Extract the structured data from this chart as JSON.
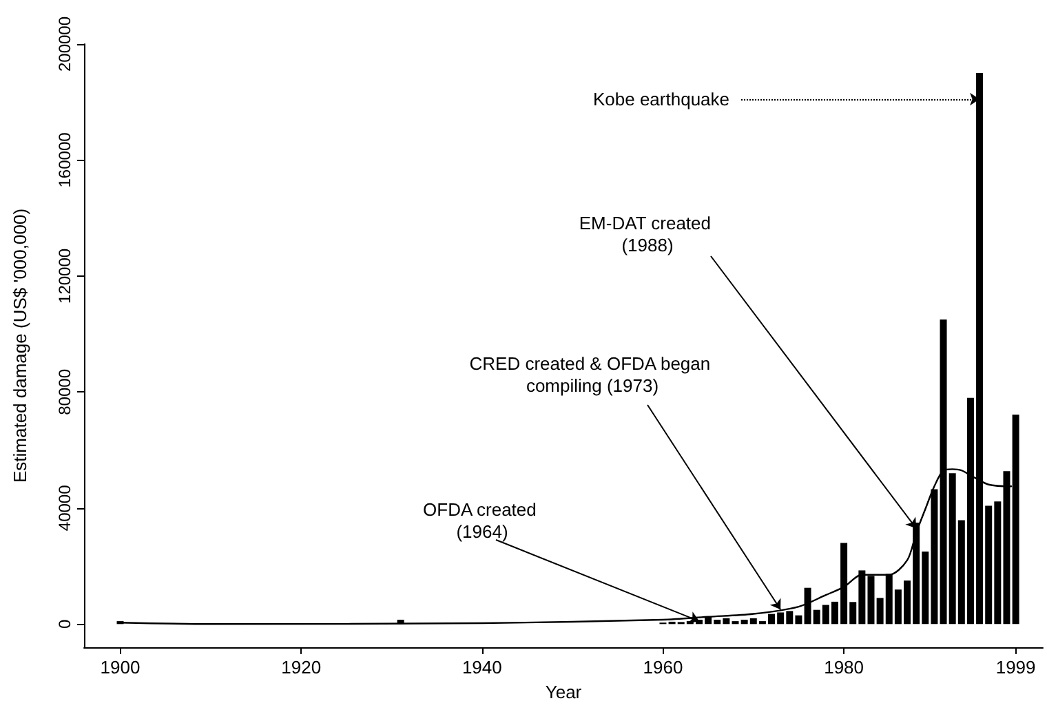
{
  "chart_data": {
    "type": "bar",
    "xlabel": "Year",
    "ylabel": "Estimated damage (US$ '000,000)",
    "xlim": [
      1896,
      2002
    ],
    "xticks": [
      1900,
      1920,
      1940,
      1960,
      1980,
      1999
    ],
    "ylim": [
      -8000,
      200000
    ],
    "yticks": [
      0,
      40000,
      80000,
      120000,
      160000,
      200000
    ],
    "series": [
      {
        "color": "#000000",
        "x": [
          1900,
          1901,
          1931,
          1960,
          1961,
          1962,
          1963,
          1964,
          1965,
          1966,
          1967,
          1968,
          1969,
          1970,
          1971,
          1972,
          1973,
          1974,
          1975,
          1976,
          1977,
          1978,
          1979,
          1980,
          1981,
          1982,
          1983,
          1984,
          1985,
          1986,
          1987,
          1988,
          1989,
          1990,
          1991,
          1992,
          1993,
          1994,
          1995,
          1996,
          1997,
          1998,
          1999
        ],
        "values": [
          1000,
          null,
          1500,
          500,
          800,
          700,
          1000,
          1500,
          2500,
          1500,
          2000,
          1000,
          1500,
          2000,
          1000,
          3500,
          4000,
          4500,
          3000,
          12500,
          4900,
          6600,
          7700,
          28000,
          7600,
          18500,
          16600,
          9000,
          17300,
          11900,
          15000,
          35000,
          25000,
          46500,
          105000,
          52000,
          35800,
          78000,
          190000,
          40800,
          42300,
          52700,
          72200
        ]
      },
      {
        "type": "line",
        "color": "#000000",
        "marker": "none",
        "line_style": "solid",
        "x": [
          1900,
          1910,
          1940,
          1960,
          1965,
          1970,
          1975,
          1978,
          1980,
          1982,
          1985,
          1987,
          1988,
          1989,
          1990,
          1991,
          1992,
          1993,
          1994,
          1996,
          1998.5
        ],
        "values": [
          500,
          0,
          300,
          1500,
          2500,
          3500,
          6000,
          10000,
          12800,
          17000,
          17000,
          22000,
          31500,
          39600,
          47500,
          52900,
          53400,
          53000,
          51300,
          48100,
          47500
        ]
      }
    ],
    "annotations": [
      {
        "text": "OFDA created (1964)",
        "x": 1964,
        "y": 1000
      },
      {
        "text": "CRED created & OFDA began compiling (1973)",
        "x": 1973,
        "y": 5000
      },
      {
        "text": "EM-DAT created (1988)",
        "x": 1988,
        "y": 33000
      },
      {
        "text": "Kobe earthquake",
        "x": 1995,
        "y": 181000
      }
    ]
  }
}
